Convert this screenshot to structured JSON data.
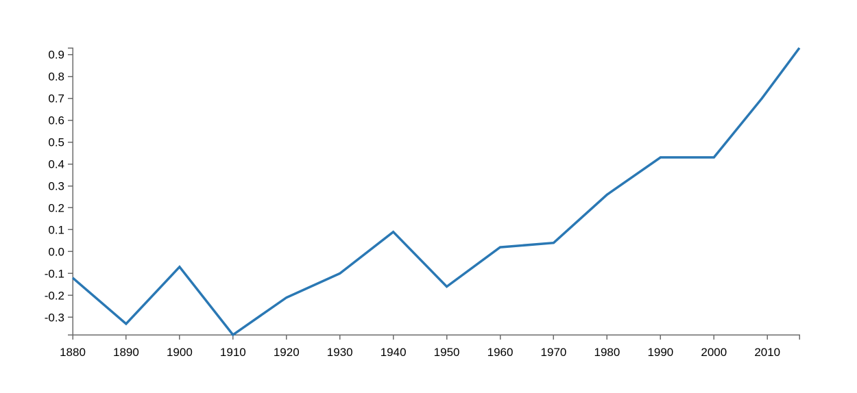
{
  "chart_data": {
    "type": "line",
    "title": "",
    "xlabel": "",
    "ylabel": "",
    "x": [
      1880,
      1890,
      1900,
      1910,
      1920,
      1930,
      1940,
      1950,
      1960,
      1970,
      1980,
      1990,
      2000,
      2009,
      2016
    ],
    "series": [
      {
        "values": [
          -0.12,
          -0.33,
          -0.07,
          -0.38,
          -0.21,
          -0.1,
          0.09,
          -0.16,
          0.02,
          0.04,
          0.26,
          0.43,
          0.43,
          0.7,
          0.93
        ],
        "color": "#2a78b4"
      }
    ],
    "xlim": [
      1880,
      2016
    ],
    "ylim": [
      -0.38,
      0.93
    ],
    "x_ticks": [
      {
        "value": 1880,
        "label": "1880"
      },
      {
        "value": 1890,
        "label": "1890"
      },
      {
        "value": 1900,
        "label": "1900"
      },
      {
        "value": 1910,
        "label": "1910"
      },
      {
        "value": 1920,
        "label": "1920"
      },
      {
        "value": 1930,
        "label": "1930"
      },
      {
        "value": 1940,
        "label": "1940"
      },
      {
        "value": 1950,
        "label": "1950"
      },
      {
        "value": 1960,
        "label": "1960"
      },
      {
        "value": 1970,
        "label": "1970"
      },
      {
        "value": 1980,
        "label": "1980"
      },
      {
        "value": 1990,
        "label": "1990"
      },
      {
        "value": 2000,
        "label": "2000"
      },
      {
        "value": 2010,
        "label": "2010"
      }
    ],
    "y_ticks": [
      {
        "value": 0.9,
        "label": "0.9"
      },
      {
        "value": 0.8,
        "label": "0.8"
      },
      {
        "value": 0.7,
        "label": "0.7"
      },
      {
        "value": 0.6,
        "label": "0.6"
      },
      {
        "value": 0.5,
        "label": "0.5"
      },
      {
        "value": 0.4,
        "label": "0.4"
      },
      {
        "value": 0.3,
        "label": "0.3"
      },
      {
        "value": 0.2,
        "label": "0.2"
      },
      {
        "value": 0.1,
        "label": "0.1"
      },
      {
        "value": 0.0,
        "label": "0.0"
      },
      {
        "value": -0.1,
        "label": "-0.1"
      },
      {
        "value": -0.2,
        "label": "-0.2"
      },
      {
        "value": -0.3,
        "label": "-0.3"
      }
    ],
    "grid": false,
    "legend": "none"
  }
}
